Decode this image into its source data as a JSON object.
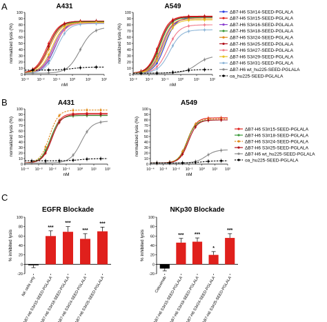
{
  "figure": {
    "panels": [
      {
        "letter": "A"
      },
      {
        "letter": "B"
      },
      {
        "letter": "C"
      }
    ]
  },
  "chart_data": [
    {
      "id": "A431-A",
      "type": "line",
      "title": "A431",
      "xlabel": "nM",
      "ylabel": "normalized lysis (%)",
      "xscale": "log",
      "xlim": [
        0.001,
        100
      ],
      "ylim": [
        0,
        100
      ],
      "xticks": [
        "10⁻³",
        "10⁻²",
        "10⁻¹",
        "10⁰",
        "10¹",
        "10²"
      ],
      "yticks": [
        "0",
        "10",
        "20",
        "30",
        "40",
        "50",
        "60",
        "70",
        "80",
        "90",
        "100"
      ],
      "legend": "none",
      "series": [
        {
          "name": "ΔB7-H6 S3#14-SEED-PGLALA",
          "color": "#2a3de0",
          "curve": {
            "bottom": 2,
            "top": 86,
            "ec50": 0.08,
            "hill": 1.2
          }
        },
        {
          "name": "ΔB7-H6 S3#15-SEED-PGLALA",
          "color": "#e0201c",
          "curve": {
            "bottom": 2,
            "top": 86,
            "ec50": 0.025,
            "hill": 1.2
          }
        },
        {
          "name": "ΔB7-H6 S3#16-SEED-PGLALA",
          "color": "#8a3fd0",
          "curve": {
            "bottom": 2,
            "top": 84,
            "ec50": 0.06,
            "hill": 1.2
          }
        },
        {
          "name": "ΔB7-H6 S3#18-SEED-PGLALA",
          "color": "#3a9a3a",
          "curve": {
            "bottom": 2,
            "top": 85,
            "ec50": 0.03,
            "hill": 1.2
          }
        },
        {
          "name": "ΔB7-H6 S3#24-SEED-PGLALA",
          "color": "#e08a1a",
          "curve": {
            "bottom": 2,
            "top": 84,
            "ec50": 0.035,
            "hill": 1.2
          }
        },
        {
          "name": "ΔB7-H6 S3#25-SEED-PGLALA",
          "color": "#b0101c",
          "curve": {
            "bottom": 2,
            "top": 86,
            "ec50": 0.03,
            "hill": 1.2
          }
        },
        {
          "name": "ΔB7-H6 S3#27-SEED-PGLALA",
          "color": "#f07a8a",
          "curve": {
            "bottom": 2,
            "top": 83,
            "ec50": 0.07,
            "hill": 1.2
          }
        },
        {
          "name": "ΔB7-H6 S3#29-SEED-PGLALA",
          "color": "#e8c020",
          "curve": {
            "bottom": 2,
            "top": 84,
            "ec50": 0.05,
            "hill": 1.2
          }
        },
        {
          "name": "ΔB7-H6 S3#31-SEED-PGLALA",
          "color": "#8fb6d8",
          "curve": {
            "bottom": 2,
            "top": 82,
            "ec50": 0.1,
            "hill": 1.2
          }
        },
        {
          "name": "ΔB7-H6 wt_hu225-SEED-PGLALA",
          "color": "#8a8a8a",
          "curve": {
            "bottom": 2,
            "top": 76,
            "ec50": 3,
            "hill": 1.1
          }
        },
        {
          "name": "oa_hu225-SEED-PGLALA",
          "color": "#000000",
          "dashed": true,
          "curve": {
            "bottom": 7,
            "top": 12,
            "ec50": 1,
            "hill": 1
          }
        }
      ]
    },
    {
      "id": "A549-A",
      "type": "line",
      "title": "A549",
      "xlabel": "nM",
      "ylabel": "normalized lysis (%)",
      "xscale": "log",
      "xlim": [
        0.001,
        100
      ],
      "ylim": [
        0,
        100
      ],
      "xticks": [
        "10⁻³",
        "10⁻²",
        "10⁻¹",
        "10⁰",
        "10¹",
        "10²"
      ],
      "yticks": [
        "0",
        "10",
        "20",
        "30",
        "40",
        "50",
        "60",
        "70",
        "80",
        "90",
        "100"
      ],
      "legend": "right",
      "series": [
        {
          "name": "ΔB7-H6 S3#14-SEED-PGLALA",
          "color": "#2a3de0",
          "curve": {
            "bottom": 2,
            "top": 92,
            "ec50": 0.1,
            "hill": 1.3
          }
        },
        {
          "name": "ΔB7-H6 S3#15-SEED-PGLALA",
          "color": "#e0201c",
          "curve": {
            "bottom": 2,
            "top": 94,
            "ec50": 0.04,
            "hill": 1.3
          }
        },
        {
          "name": "ΔB7-H6 S3#16-SEED-PGLALA",
          "color": "#8a3fd0",
          "curve": {
            "bottom": 2,
            "top": 90,
            "ec50": 0.07,
            "hill": 1.3
          }
        },
        {
          "name": "ΔB7-H6 S3#18-SEED-PGLALA",
          "color": "#3a9a3a",
          "curve": {
            "bottom": 2,
            "top": 92,
            "ec50": 0.05,
            "hill": 1.3
          }
        },
        {
          "name": "ΔB7-H6 S3#24-SEED-PGLALA",
          "color": "#e08a1a",
          "curve": {
            "bottom": 2,
            "top": 90,
            "ec50": 0.06,
            "hill": 1.3
          }
        },
        {
          "name": "ΔB7-H6 S3#25-SEED-PGLALA",
          "color": "#b0101c",
          "curve": {
            "bottom": 2,
            "top": 93,
            "ec50": 0.045,
            "hill": 1.3
          }
        },
        {
          "name": "ΔB7-H6 S3#27-SEED-PGLALA",
          "color": "#f07a8a",
          "curve": {
            "bottom": 2,
            "top": 80,
            "ec50": 0.15,
            "hill": 1.2
          }
        },
        {
          "name": "ΔB7-H6 S3#29-SEED-PGLALA",
          "color": "#e8c020",
          "curve": {
            "bottom": 2,
            "top": 88,
            "ec50": 0.08,
            "hill": 1.3
          }
        },
        {
          "name": "ΔB7-H6 S3#31-SEED-PGLALA",
          "color": "#8fb6d8",
          "curve": {
            "bottom": 2,
            "top": 72,
            "ec50": 0.2,
            "hill": 1.2
          }
        },
        {
          "name": "ΔB7-H6 wt_hu225-SEED-PGLALA",
          "color": "#8a8a8a",
          "curve": {
            "bottom": 2,
            "top": 30,
            "ec50": 10,
            "hill": 1.1
          }
        },
        {
          "name": "oa_hu225-SEED-PGLALA",
          "color": "#000000",
          "dashed": true,
          "curve": {
            "bottom": 2,
            "top": 8,
            "ec50": 1,
            "hill": 1
          }
        }
      ]
    },
    {
      "id": "A431-B",
      "type": "line",
      "title": "A431",
      "xlabel": "nM",
      "ylabel": "normalized lysis (%)",
      "xscale": "log",
      "xlim": [
        0.0001,
        100
      ],
      "ylim": [
        0,
        100
      ],
      "xticks": [
        "10⁻⁴",
        "10⁻³",
        "10⁻²",
        "10⁻¹",
        "10⁰",
        "10¹",
        "10²"
      ],
      "yticks": [
        "0",
        "10",
        "20",
        "30",
        "40",
        "50",
        "60",
        "70",
        "80",
        "90",
        "100"
      ],
      "legend": "none",
      "series": [
        {
          "name": "ΔB7-H6 S3#15-SEED-PGLALA",
          "color": "#e0201c",
          "curve": {
            "bottom": 2,
            "top": 92,
            "ec50": 0.008,
            "hill": 1.3
          }
        },
        {
          "name": "ΔB7-H6 S3#18-SEED-PGLALA",
          "color": "#3a9a3a",
          "curve": {
            "bottom": 2,
            "top": 88,
            "ec50": 0.007,
            "hill": 1.3
          }
        },
        {
          "name": "ΔB7-H6 S3#24-SEED-PGLALA",
          "color": "#e08a1a",
          "dashed": true,
          "curve": {
            "bottom": 2,
            "top": 98,
            "ec50": 0.006,
            "hill": 1.3
          }
        },
        {
          "name": "ΔB7-H6 S3#25-SEED-PGLALA",
          "color": "#b0101c",
          "curve": {
            "bottom": 2,
            "top": 90,
            "ec50": 0.009,
            "hill": 1.3
          }
        },
        {
          "name": "ΔB7-H6 wt_hu225-SEED-PGLALA",
          "color": "#8a8a8a",
          "curve": {
            "bottom": 2,
            "top": 78,
            "ec50": 1.2,
            "hill": 1.1
          }
        },
        {
          "name": "oa_hu225-SEED-PGLALA",
          "color": "#000000",
          "dashed": true,
          "curve": {
            "bottom": 6,
            "top": 10,
            "ec50": 1,
            "hill": 1
          }
        }
      ]
    },
    {
      "id": "A549-B",
      "type": "line",
      "title": "A549",
      "xlabel": "nM",
      "ylabel": "normalized lysis (%)",
      "xscale": "log",
      "xlim": [
        0.0001,
        100
      ],
      "ylim": [
        0,
        100
      ],
      "xticks": [
        "10⁻⁴",
        "10⁻³",
        "10⁻²",
        "10⁻¹",
        "10⁰",
        "10¹",
        "10²"
      ],
      "yticks": [
        "0",
        "10",
        "20",
        "30",
        "40",
        "50",
        "60",
        "70",
        "80",
        "90",
        "100"
      ],
      "legend": "right",
      "series": [
        {
          "name": "ΔB7-H6 S3#15-SEED-PGLALA",
          "color": "#e0201c",
          "curve": {
            "bottom": 2,
            "top": 84,
            "ec50": 0.08,
            "hill": 1.3
          }
        },
        {
          "name": "ΔB7-H6 S3#18-SEED-PGLALA",
          "color": "#3a9a3a",
          "curve": {
            "bottom": 2,
            "top": 80,
            "ec50": 0.07,
            "hill": 1.3
          }
        },
        {
          "name": "ΔB7-H6 S3#24-SEED-PGLALA",
          "color": "#e08a1a",
          "dashed": true,
          "curve": {
            "bottom": 2,
            "top": 82,
            "ec50": 0.07,
            "hill": 1.3
          }
        },
        {
          "name": "ΔB7-H6 S3#25-SEED-PGLALA",
          "color": "#b0101c",
          "curve": {
            "bottom": 2,
            "top": 80,
            "ec50": 0.09,
            "hill": 1.3
          }
        },
        {
          "name": "ΔB7-H6 wt_hu225-SEED-PGLALA",
          "color": "#8a8a8a",
          "curve": {
            "bottom": 2,
            "top": 26,
            "ec50": 2,
            "hill": 1.1
          }
        },
        {
          "name": "oa_hu225-SEED-PGLALA",
          "color": "#000000",
          "dashed": true,
          "curve": {
            "bottom": 2,
            "top": 6,
            "ec50": 1,
            "hill": 1
          }
        }
      ]
    },
    {
      "id": "EGFR",
      "type": "bar",
      "title": "EGFR Blockade",
      "ylabel": "% inhibited lysis",
      "ylim": [
        -20,
        100
      ],
      "yticks": [
        "-20",
        "0",
        "20",
        "40",
        "60",
        "80",
        "100"
      ],
      "categories": [
        "NK cells only",
        "ΔB7-H6 S3#15-SEED-PGLALA",
        "ΔB7-H6 S3#18-SEED-PGLALA",
        "ΔB7-H6 S3#24-SEED-PGLALA",
        "ΔB7-H6 S3#25-SEED-PGLALA"
      ],
      "values": [
        -2,
        60,
        69,
        54,
        70
      ],
      "errors": [
        5,
        11,
        11,
        11,
        9
      ],
      "significance": [
        "",
        "***",
        "***",
        "***",
        "***"
      ],
      "colors": [
        "#000000",
        "#e0201c",
        "#e0201c",
        "#e0201c",
        "#e0201c"
      ]
    },
    {
      "id": "NKp30",
      "type": "bar",
      "title": "NKp30 Blockade",
      "ylabel": "% inhibited lysis",
      "ylim": [
        -20,
        100
      ],
      "yticks": [
        "-20",
        "0",
        "20",
        "40",
        "60",
        "80",
        "100"
      ],
      "categories": [
        "Cetuximab",
        "ΔB7-H6 S3#15-SEED-PGLALA",
        "ΔB7-H6 S3#18-SEED-PGLALA",
        "ΔB7-H6 S3#24-SEED-PGLALA",
        "ΔB7-H6 S3#25-SEED-PGLALA"
      ],
      "values": [
        -9,
        46,
        48,
        20,
        56
      ],
      "errors": [
        5,
        9,
        8,
        7,
        9
      ],
      "significance": [
        "",
        "***",
        "***",
        "*",
        "***"
      ],
      "colors": [
        "#000000",
        "#e0201c",
        "#e0201c",
        "#e0201c",
        "#e0201c"
      ]
    }
  ]
}
